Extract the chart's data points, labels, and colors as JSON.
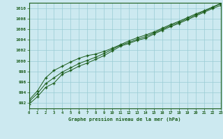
{
  "title": "Graphe pression niveau de la mer (hPa)",
  "background_color": "#cce9f0",
  "grid_color": "#99ccd4",
  "line_color": "#1a5c1a",
  "hours": [
    0,
    1,
    2,
    3,
    4,
    5,
    6,
    7,
    8,
    9,
    10,
    11,
    12,
    13,
    14,
    15,
    16,
    17,
    18,
    19,
    20,
    21,
    22,
    23
  ],
  "line1": [
    991.8,
    993.2,
    995.0,
    995.8,
    997.5,
    998.2,
    999.0,
    999.6,
    1000.3,
    1001.0,
    1001.9,
    1002.8,
    1003.3,
    1003.9,
    1004.3,
    1005.1,
    1005.8,
    1006.5,
    1007.1,
    1007.8,
    1008.5,
    1009.2,
    1009.9,
    1010.5
  ],
  "line2": [
    992.3,
    993.8,
    995.7,
    996.8,
    997.9,
    998.7,
    999.5,
    1000.1,
    1000.7,
    1001.4,
    1002.2,
    1003.0,
    1003.5,
    1004.1,
    1004.6,
    1005.3,
    1006.0,
    1006.7,
    1007.3,
    1008.0,
    1008.7,
    1009.4,
    1010.1,
    1010.8
  ],
  "line3": [
    992.6,
    994.3,
    996.8,
    998.2,
    999.0,
    999.8,
    1000.5,
    1001.0,
    1001.3,
    1001.8,
    1002.4,
    1003.1,
    1003.8,
    1004.4,
    1004.9,
    1005.5,
    1006.2,
    1006.9,
    1007.5,
    1008.2,
    1008.9,
    1009.5,
    1010.2,
    1010.9
  ],
  "ylim": [
    991.0,
    1011.0
  ],
  "yticks": [
    992,
    994,
    996,
    998,
    1000,
    1002,
    1004,
    1006,
    1008,
    1010
  ],
  "xlim": [
    0,
    23
  ]
}
